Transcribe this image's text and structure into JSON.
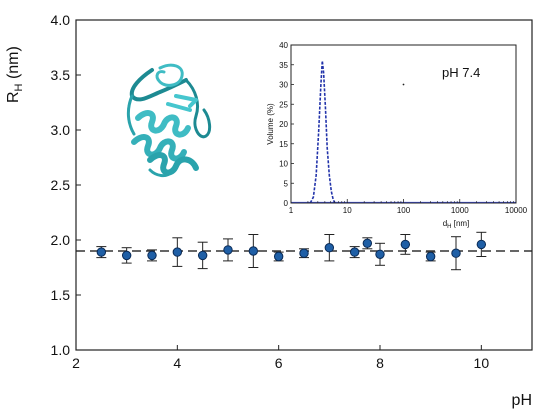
{
  "chart_data": [
    {
      "type": "scatter",
      "title": "",
      "xlabel": "pH",
      "ylabel_main": "R",
      "ylabel_sub": "H",
      "ylabel_unit": " (nm)",
      "xlim": [
        2,
        11
      ],
      "ylim": [
        1.0,
        4.0
      ],
      "xticks": [
        2,
        4,
        6,
        8,
        10
      ],
      "xtick_labels": [
        "2",
        "4",
        "6",
        "8",
        "10"
      ],
      "yticks": [
        1.0,
        1.5,
        2.0,
        2.5,
        3.0,
        3.5,
        4.0
      ],
      "ytick_labels": [
        "1.0",
        "1.5",
        "2.0",
        "2.5",
        "3.0",
        "3.5",
        "4.0"
      ],
      "grid": false,
      "reference_line": {
        "y": 1.9,
        "style": "dashed",
        "color": "#333333"
      },
      "marker_color": "#1f5fa6",
      "points": [
        {
          "x": 2.5,
          "y": 1.89,
          "err": 0.05
        },
        {
          "x": 3.0,
          "y": 1.86,
          "err": 0.07
        },
        {
          "x": 3.5,
          "y": 1.86,
          "err": 0.05
        },
        {
          "x": 4.0,
          "y": 1.89,
          "err": 0.13
        },
        {
          "x": 4.5,
          "y": 1.86,
          "err": 0.12
        },
        {
          "x": 5.0,
          "y": 1.91,
          "err": 0.1
        },
        {
          "x": 5.5,
          "y": 1.9,
          "err": 0.15
        },
        {
          "x": 6.0,
          "y": 1.85,
          "err": 0.04
        },
        {
          "x": 6.5,
          "y": 1.88,
          "err": 0.04
        },
        {
          "x": 7.0,
          "y": 1.93,
          "err": 0.12
        },
        {
          "x": 7.5,
          "y": 1.89,
          "err": 0.05
        },
        {
          "x": 7.75,
          "y": 1.97,
          "err": 0.05
        },
        {
          "x": 8.0,
          "y": 1.87,
          "err": 0.1
        },
        {
          "x": 8.5,
          "y": 1.96,
          "err": 0.09
        },
        {
          "x": 9.0,
          "y": 1.85,
          "err": 0.04
        },
        {
          "x": 9.5,
          "y": 1.88,
          "err": 0.15
        },
        {
          "x": 10.0,
          "y": 1.96,
          "err": 0.11
        }
      ]
    },
    {
      "type": "line",
      "annotation": "pH 7.4",
      "ylabel": "Volume (%)",
      "xlabel_main": "d",
      "xlabel_sub": "H",
      "xlabel_unit": " [nm]",
      "xscale": "log",
      "xlim": [
        1,
        10000
      ],
      "ylim": [
        0,
        40
      ],
      "xticks": [
        1,
        10,
        100,
        1000,
        10000
      ],
      "xtick_labels": [
        "1",
        "10",
        "100",
        "1000",
        "10000"
      ],
      "yticks": [
        0,
        5,
        10,
        15,
        20,
        25,
        30,
        35,
        40
      ],
      "ytick_labels": [
        "0",
        "5",
        "10",
        "15",
        "20",
        "25",
        "30",
        "35",
        "40"
      ],
      "grid": false,
      "series_color": "#2233aa",
      "baseline_color": "#4455ee",
      "x": [
        2.2,
        2.5,
        2.8,
        3.1,
        3.4,
        3.6,
        3.8,
        4.1,
        4.4,
        4.8,
        5.2,
        5.6,
        6.0
      ],
      "y": [
        0,
        1.5,
        7,
        18,
        30,
        36,
        33,
        24,
        14,
        7,
        3,
        1,
        0
      ],
      "stray_point": {
        "x": 100,
        "y": 30
      }
    }
  ],
  "image": {
    "protein_color": "#3fbcc4",
    "protein_dark": "#1d8a92"
  }
}
